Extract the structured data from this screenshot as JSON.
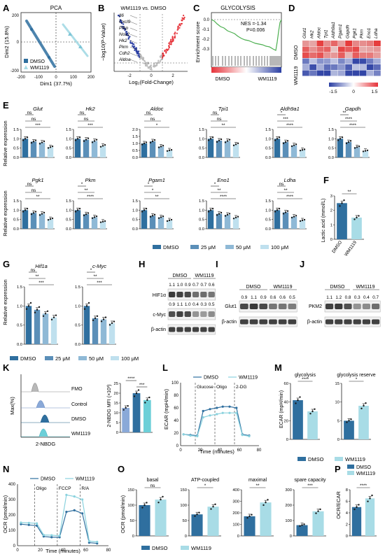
{
  "colors": {
    "dmso": "#2f6f9f",
    "c25": "#5b8fb8",
    "c50": "#8fb9d6",
    "c100": "#bfe0ee",
    "wm": "#a8dce6",
    "red": "#e6333a",
    "blue": "#2b3fa3",
    "axis": "#222222"
  },
  "panels": {
    "A": {
      "letter": "A",
      "title": "PCA",
      "xlabel": "Dim1 (37.7%)",
      "ylabel": "Dim2 (15.8%)",
      "xticks": [
        "-200",
        "-100",
        "0",
        "100",
        "200"
      ],
      "yticks": [
        "200",
        "0",
        "-200"
      ],
      "legend": [
        "DMSO",
        "WM1119"
      ]
    },
    "B": {
      "letter": "B",
      "title": "WM1119 vs. DMSO",
      "xlabel": "Log₂(Fold-Change)",
      "ylabel": "−log10(P-Value)",
      "xticks": [
        "-2",
        "0",
        "2"
      ],
      "genes": [
        "Il6",
        "Cxcl9",
        "Pfkp",
        "Nos2",
        "Hk2",
        "Pkm",
        "Cdh2",
        "Aldoa"
      ]
    },
    "C": {
      "letter": "C",
      "title": "GLYCOLYSIS",
      "ylabel": "Enrichment score",
      "nes": "NES =-1.34",
      "p": "P=0.006",
      "yticks": [
        "0.0",
        "-0.1",
        "-0.2",
        "-0.3"
      ],
      "xlabels": [
        "DMSO",
        "WM1119"
      ]
    },
    "D": {
      "letter": "D",
      "genes": [
        "Glut1",
        "Hk2",
        "Aldoc",
        "Tpi1",
        "Aldh9a1",
        "Pgam1",
        "Gapdh",
        "Pgk1",
        "Pkm",
        "Eno1",
        "Ldha"
      ],
      "rows": [
        "DMSO",
        "WM1119"
      ],
      "scale": [
        "-1.5",
        "0",
        "1.5"
      ]
    },
    "E": {
      "letter": "E",
      "ylabel": "Relative expression",
      "legend": [
        "DMSO",
        "25 μM",
        "50 μM",
        "100 μM"
      ]
    },
    "F": {
      "letter": "F",
      "ylabel": "Lactic acid (mmol/L)",
      "categories": [
        "DMSO",
        "WM1119"
      ],
      "sig": "**"
    },
    "G": {
      "letter": "G",
      "ylabel": "Relative expression",
      "legend": [
        "DMSO",
        "25 μM",
        "50 μM",
        "100 μM"
      ]
    },
    "H": {
      "letter": "H",
      "groups": [
        "DMSO",
        "WM1119"
      ],
      "bands": [
        "HIF1α",
        "c-Myc",
        "β-actin"
      ],
      "q1": [
        "1.1",
        "1.0",
        "0.9",
        "0.7",
        "0.7",
        "0.6"
      ],
      "q2": [
        "0.9",
        "1.1",
        "1.0",
        "0.4",
        "0.3",
        "0.5"
      ]
    },
    "I": {
      "letter": "I",
      "groups": [
        "DMSO",
        "WM1119"
      ],
      "bands": [
        "Glut1",
        "β-actin"
      ],
      "q1": [
        "0.9",
        "1.1",
        "0.9",
        "0.6",
        "0.6",
        "0.5"
      ]
    },
    "J": {
      "letter": "J",
      "groups": [
        "DMSO",
        "WM1119"
      ],
      "bands": [
        "PKM2",
        "β-actin"
      ],
      "q1": [
        "1.1",
        "1.2",
        "0.8",
        "0.3",
        "0.4",
        "0.7"
      ]
    },
    "K": {
      "letter": "K",
      "histo_labels": [
        "FMO",
        "Control",
        "DMSO",
        "WM1119"
      ],
      "xlabel": "2-NBDG",
      "ylabel": "Max(%)",
      "bar_ylabel": "2-NBDG MFI (×10³)",
      "sig": "****",
      "sig2": "***"
    },
    "L": {
      "letter": "L",
      "xlabel": "Time (minutes)",
      "ylabel": "ECAR (mpH/min)",
      "legend": [
        "DMSO",
        "WM1119"
      ],
      "injections": [
        "Glucose",
        "Oligo",
        "2-DG"
      ]
    },
    "M": {
      "letter": "M",
      "titles": [
        "glycolysis",
        "glycolysis reserve"
      ],
      "ylabel": "ECAR (mpH/min)",
      "sig": [
        "****",
        "*"
      ],
      "legend": [
        "DMSO",
        "WM1119"
      ]
    },
    "N": {
      "letter": "N",
      "xlabel": "Time (minutes)",
      "ylabel": "OCR (pmol/min)",
      "legend": [
        "DMSO",
        "WM1119"
      ],
      "injections": [
        "Oligo",
        "FCCP",
        "R/A"
      ]
    },
    "O": {
      "letter": "O",
      "titles": [
        "basal",
        "ATP-coupled",
        "maximal",
        "spare capacity"
      ],
      "ylabel": "OCR (pmol/min)",
      "sig": [
        "ns",
        "*",
        "**",
        "***"
      ],
      "legend": [
        "DMSO",
        "WM1119"
      ]
    },
    "P": {
      "letter": "P",
      "ylabel": "OCR/ECAR",
      "sig": "****",
      "legend": [
        "DMSO",
        "WM1119"
      ]
    }
  },
  "chart_data": [
    {
      "type": "bar",
      "panel": "E",
      "gene": "Glut",
      "categories": [
        "DMSO",
        "25 μM",
        "50 μM",
        "100 μM"
      ],
      "values": [
        1.0,
        0.85,
        0.8,
        0.55
      ],
      "ylim": [
        0,
        1.5
      ],
      "yticks": [
        "0.0",
        "0.5",
        "1.0",
        "1.5"
      ],
      "sig": [
        "ns",
        "ns",
        "***"
      ]
    },
    {
      "type": "bar",
      "panel": "E",
      "gene": "Hk2",
      "categories": [
        "DMSO",
        "25 μM",
        "50 μM",
        "100 μM"
      ],
      "values": [
        1.0,
        0.95,
        0.88,
        0.62
      ],
      "ylim": [
        0,
        1.5
      ],
      "yticks": [
        "0.0",
        "0.5",
        "1.0",
        "1.5"
      ],
      "sig": [
        "ns",
        "ns",
        "***"
      ]
    },
    {
      "type": "bar",
      "panel": "E",
      "gene": "Aldoc",
      "categories": [
        "DMSO",
        "25 μM",
        "50 μM",
        "100 μM"
      ],
      "values": [
        1.0,
        1.15,
        0.78,
        0.5
      ],
      "ylim": [
        0,
        2.0
      ],
      "yticks": [
        "0.0",
        "0.5",
        "1.0",
        "1.5",
        "2.0"
      ],
      "sig": [
        "ns",
        "ns",
        "*"
      ]
    },
    {
      "type": "bar",
      "panel": "E",
      "gene": "Tpi1",
      "categories": [
        "DMSO",
        "25 μM",
        "50 μM",
        "100 μM"
      ],
      "values": [
        1.0,
        0.9,
        0.88,
        0.7
      ],
      "ylim": [
        0,
        1.5
      ],
      "yticks": [
        "0.0",
        "0.5",
        "1.0",
        "1.5"
      ],
      "sig": [
        "ns",
        "ns",
        "**"
      ]
    },
    {
      "type": "bar",
      "panel": "E",
      "gene": "Aldh9a1",
      "categories": [
        "DMSO",
        "25 μM",
        "50 μM",
        "100 μM"
      ],
      "values": [
        1.0,
        0.82,
        0.65,
        0.4
      ],
      "ylim": [
        0,
        1.5
      ],
      "yticks": [
        "0.0",
        "0.5",
        "1.0",
        "1.5"
      ],
      "sig": [
        "*",
        "***",
        "****"
      ]
    },
    {
      "type": "bar",
      "panel": "E",
      "gene": "Gapdh",
      "categories": [
        "DMSO",
        "25 μM",
        "50 μM",
        "100 μM"
      ],
      "values": [
        1.0,
        0.82,
        0.55,
        0.35
      ],
      "ylim": [
        0,
        1.5
      ],
      "yticks": [
        "0.0",
        "0.5",
        "1.0",
        "1.5"
      ],
      "sig": [
        "**",
        "****",
        "****"
      ]
    },
    {
      "type": "bar",
      "panel": "E",
      "gene": "Pgk1",
      "categories": [
        "DMSO",
        "25 μM",
        "50 μM",
        "100 μM"
      ],
      "values": [
        1.0,
        0.85,
        0.8,
        0.52
      ],
      "ylim": [
        0,
        1.5
      ],
      "yticks": [
        "0.0",
        "0.5",
        "1.0",
        "1.5"
      ],
      "sig": [
        "ns",
        "ns",
        "**"
      ]
    },
    {
      "type": "bar",
      "panel": "E",
      "gene": "Pkm",
      "categories": [
        "DMSO",
        "25 μM",
        "50 μM",
        "100 μM"
      ],
      "values": [
        1.0,
        0.78,
        0.62,
        0.38
      ],
      "ylim": [
        0,
        1.5
      ],
      "yticks": [
        "0.0",
        "0.5",
        "1.0",
        "1.5"
      ],
      "sig": [
        "*",
        "**",
        "****"
      ]
    },
    {
      "type": "bar",
      "panel": "E",
      "gene": "Pgam1",
      "categories": [
        "DMSO",
        "25 μM",
        "50 μM",
        "100 μM"
      ],
      "values": [
        1.0,
        0.7,
        0.62,
        0.45
      ],
      "ylim": [
        0,
        1.5
      ],
      "yticks": [
        "0.0",
        "0.5",
        "1.0",
        "1.5"
      ],
      "sig": [
        "*",
        "*",
        "**"
      ]
    },
    {
      "type": "bar",
      "panel": "E",
      "gene": "Eno1",
      "categories": [
        "DMSO",
        "25 μM",
        "50 μM",
        "100 μM"
      ],
      "values": [
        1.0,
        0.8,
        0.75,
        0.6
      ],
      "ylim": [
        0,
        1.5
      ],
      "yticks": [
        "0.0",
        "0.5",
        "1.0",
        "1.5"
      ],
      "sig": [
        "*",
        "**",
        "****"
      ]
    },
    {
      "type": "bar",
      "panel": "E",
      "gene": "Ldha",
      "categories": [
        "DMSO",
        "25 μM",
        "50 μM",
        "100 μM"
      ],
      "values": [
        1.0,
        0.88,
        0.65,
        0.45
      ],
      "ylim": [
        0,
        1.5
      ],
      "yticks": [
        "0.0",
        "0.5",
        "1.0",
        "1.5"
      ],
      "sig": [
        "ns",
        "**",
        "****"
      ]
    },
    {
      "type": "bar",
      "panel": "F",
      "categories": [
        "DMSO",
        "WM1119"
      ],
      "values": [
        2.5,
        1.5
      ],
      "ylim": [
        0,
        3
      ],
      "yticks": [
        "0",
        "1",
        "2",
        "3"
      ]
    },
    {
      "type": "bar",
      "panel": "G",
      "gene": "Hif1a",
      "categories": [
        "DMSO",
        "25 μM",
        "50 μM",
        "100 μM"
      ],
      "values": [
        1.0,
        0.9,
        0.8,
        0.7
      ],
      "ylim": [
        0,
        1.5
      ],
      "yticks": [
        "0.0",
        "0.5",
        "1.0",
        "1.5"
      ],
      "sig": [
        "ns",
        "**",
        "***"
      ]
    },
    {
      "type": "bar",
      "panel": "G",
      "gene": "c-Myc",
      "categories": [
        "DMSO",
        "25 μM",
        "50 μM",
        "100 μM"
      ],
      "values": [
        1.0,
        0.68,
        0.65,
        0.55
      ],
      "ylim": [
        0,
        1.5
      ],
      "yticks": [
        "0.0",
        "0.5",
        "1.0",
        "1.5"
      ],
      "sig": [
        "*",
        "**",
        "***"
      ]
    },
    {
      "type": "bar",
      "panel": "K",
      "categories": [
        "Control",
        "DMSO",
        "WM1119"
      ],
      "values": [
        12.5,
        20.0,
        16.5
      ],
      "ylim": [
        0,
        25
      ],
      "yticks": [
        "0",
        "5",
        "10",
        "15",
        "20",
        "25"
      ]
    },
    {
      "type": "line",
      "panel": "L",
      "x": [
        3,
        10,
        17,
        23,
        30,
        37,
        43,
        50,
        57,
        63,
        70
      ],
      "series": [
        {
          "name": "DMSO",
          "values": [
            18,
            17,
            16,
            55,
            58,
            60,
            62,
            62,
            60,
            18,
            16
          ]
        },
        {
          "name": "WM1119",
          "values": [
            18,
            16,
            15,
            45,
            48,
            50,
            52,
            52,
            52,
            17,
            15
          ]
        }
      ],
      "xlim": [
        0,
        80
      ],
      "ylim": [
        0,
        100
      ],
      "xticks": [
        "0",
        "20",
        "40",
        "60",
        "80"
      ],
      "yticks": [
        "0",
        "20",
        "40",
        "60",
        "80",
        "100"
      ]
    },
    {
      "type": "bar",
      "panel": "M",
      "title": "glycolysis",
      "categories": [
        "DMSO",
        "WM1119"
      ],
      "values": [
        42,
        30
      ],
      "ylim": [
        0,
        60
      ],
      "yticks": [
        "0",
        "20",
        "40",
        "60"
      ]
    },
    {
      "type": "bar",
      "panel": "M",
      "title": "glycolysis reserve",
      "categories": [
        "DMSO",
        "WM1119"
      ],
      "values": [
        5,
        9
      ],
      "ylim": [
        0,
        15
      ],
      "yticks": [
        "0",
        "5",
        "10",
        "15"
      ]
    },
    {
      "type": "line",
      "panel": "N",
      "x": [
        3,
        10,
        17,
        23,
        30,
        37,
        43,
        50,
        57,
        63,
        70
      ],
      "series": [
        {
          "name": "DMSO",
          "values": [
            140,
            135,
            130,
            60,
            55,
            55,
            220,
            230,
            210,
            20,
            15
          ]
        },
        {
          "name": "WM1119",
          "values": [
            150,
            148,
            145,
            70,
            68,
            65,
            330,
            320,
            300,
            30,
            25
          ]
        }
      ],
      "xlim": [
        0,
        80
      ],
      "ylim": [
        0,
        400
      ],
      "xticks": [
        "0",
        "20",
        "40",
        "60",
        "80"
      ],
      "yticks": [
        "0",
        "100",
        "200",
        "300",
        "400"
      ]
    },
    {
      "type": "bar",
      "panel": "O",
      "title": "basal",
      "categories": [
        "DMSO",
        "WM1119"
      ],
      "values": [
        100,
        118
      ],
      "ylim": [
        0,
        150
      ],
      "yticks": [
        "0",
        "50",
        "100",
        "150"
      ]
    },
    {
      "type": "bar",
      "panel": "O",
      "title": "ATP-coupled",
      "categories": [
        "DMSO",
        "WM1119"
      ],
      "values": [
        70,
        95
      ],
      "ylim": [
        0,
        150
      ],
      "yticks": [
        "0",
        "50",
        "100",
        "150"
      ]
    },
    {
      "type": "bar",
      "panel": "O",
      "title": "maximal",
      "categories": [
        "DMSO",
        "WM1119"
      ],
      "values": [
        170,
        290
      ],
      "ylim": [
        0,
        400
      ],
      "yticks": [
        "0",
        "100",
        "200",
        "300",
        "400"
      ]
    },
    {
      "type": "bar",
      "panel": "O",
      "title": "spare capacity",
      "categories": [
        "DMSO",
        "WM1119"
      ],
      "values": [
        70,
        160
      ],
      "ylim": [
        0,
        300
      ],
      "yticks": [
        "0",
        "100",
        "200",
        "300"
      ]
    },
    {
      "type": "bar",
      "panel": "P",
      "categories": [
        "DMSO",
        "WM1119"
      ],
      "values": [
        5,
        6.5
      ],
      "ylim": [
        0,
        8
      ],
      "yticks": [
        "0",
        "2",
        "4",
        "6",
        "8"
      ]
    }
  ]
}
